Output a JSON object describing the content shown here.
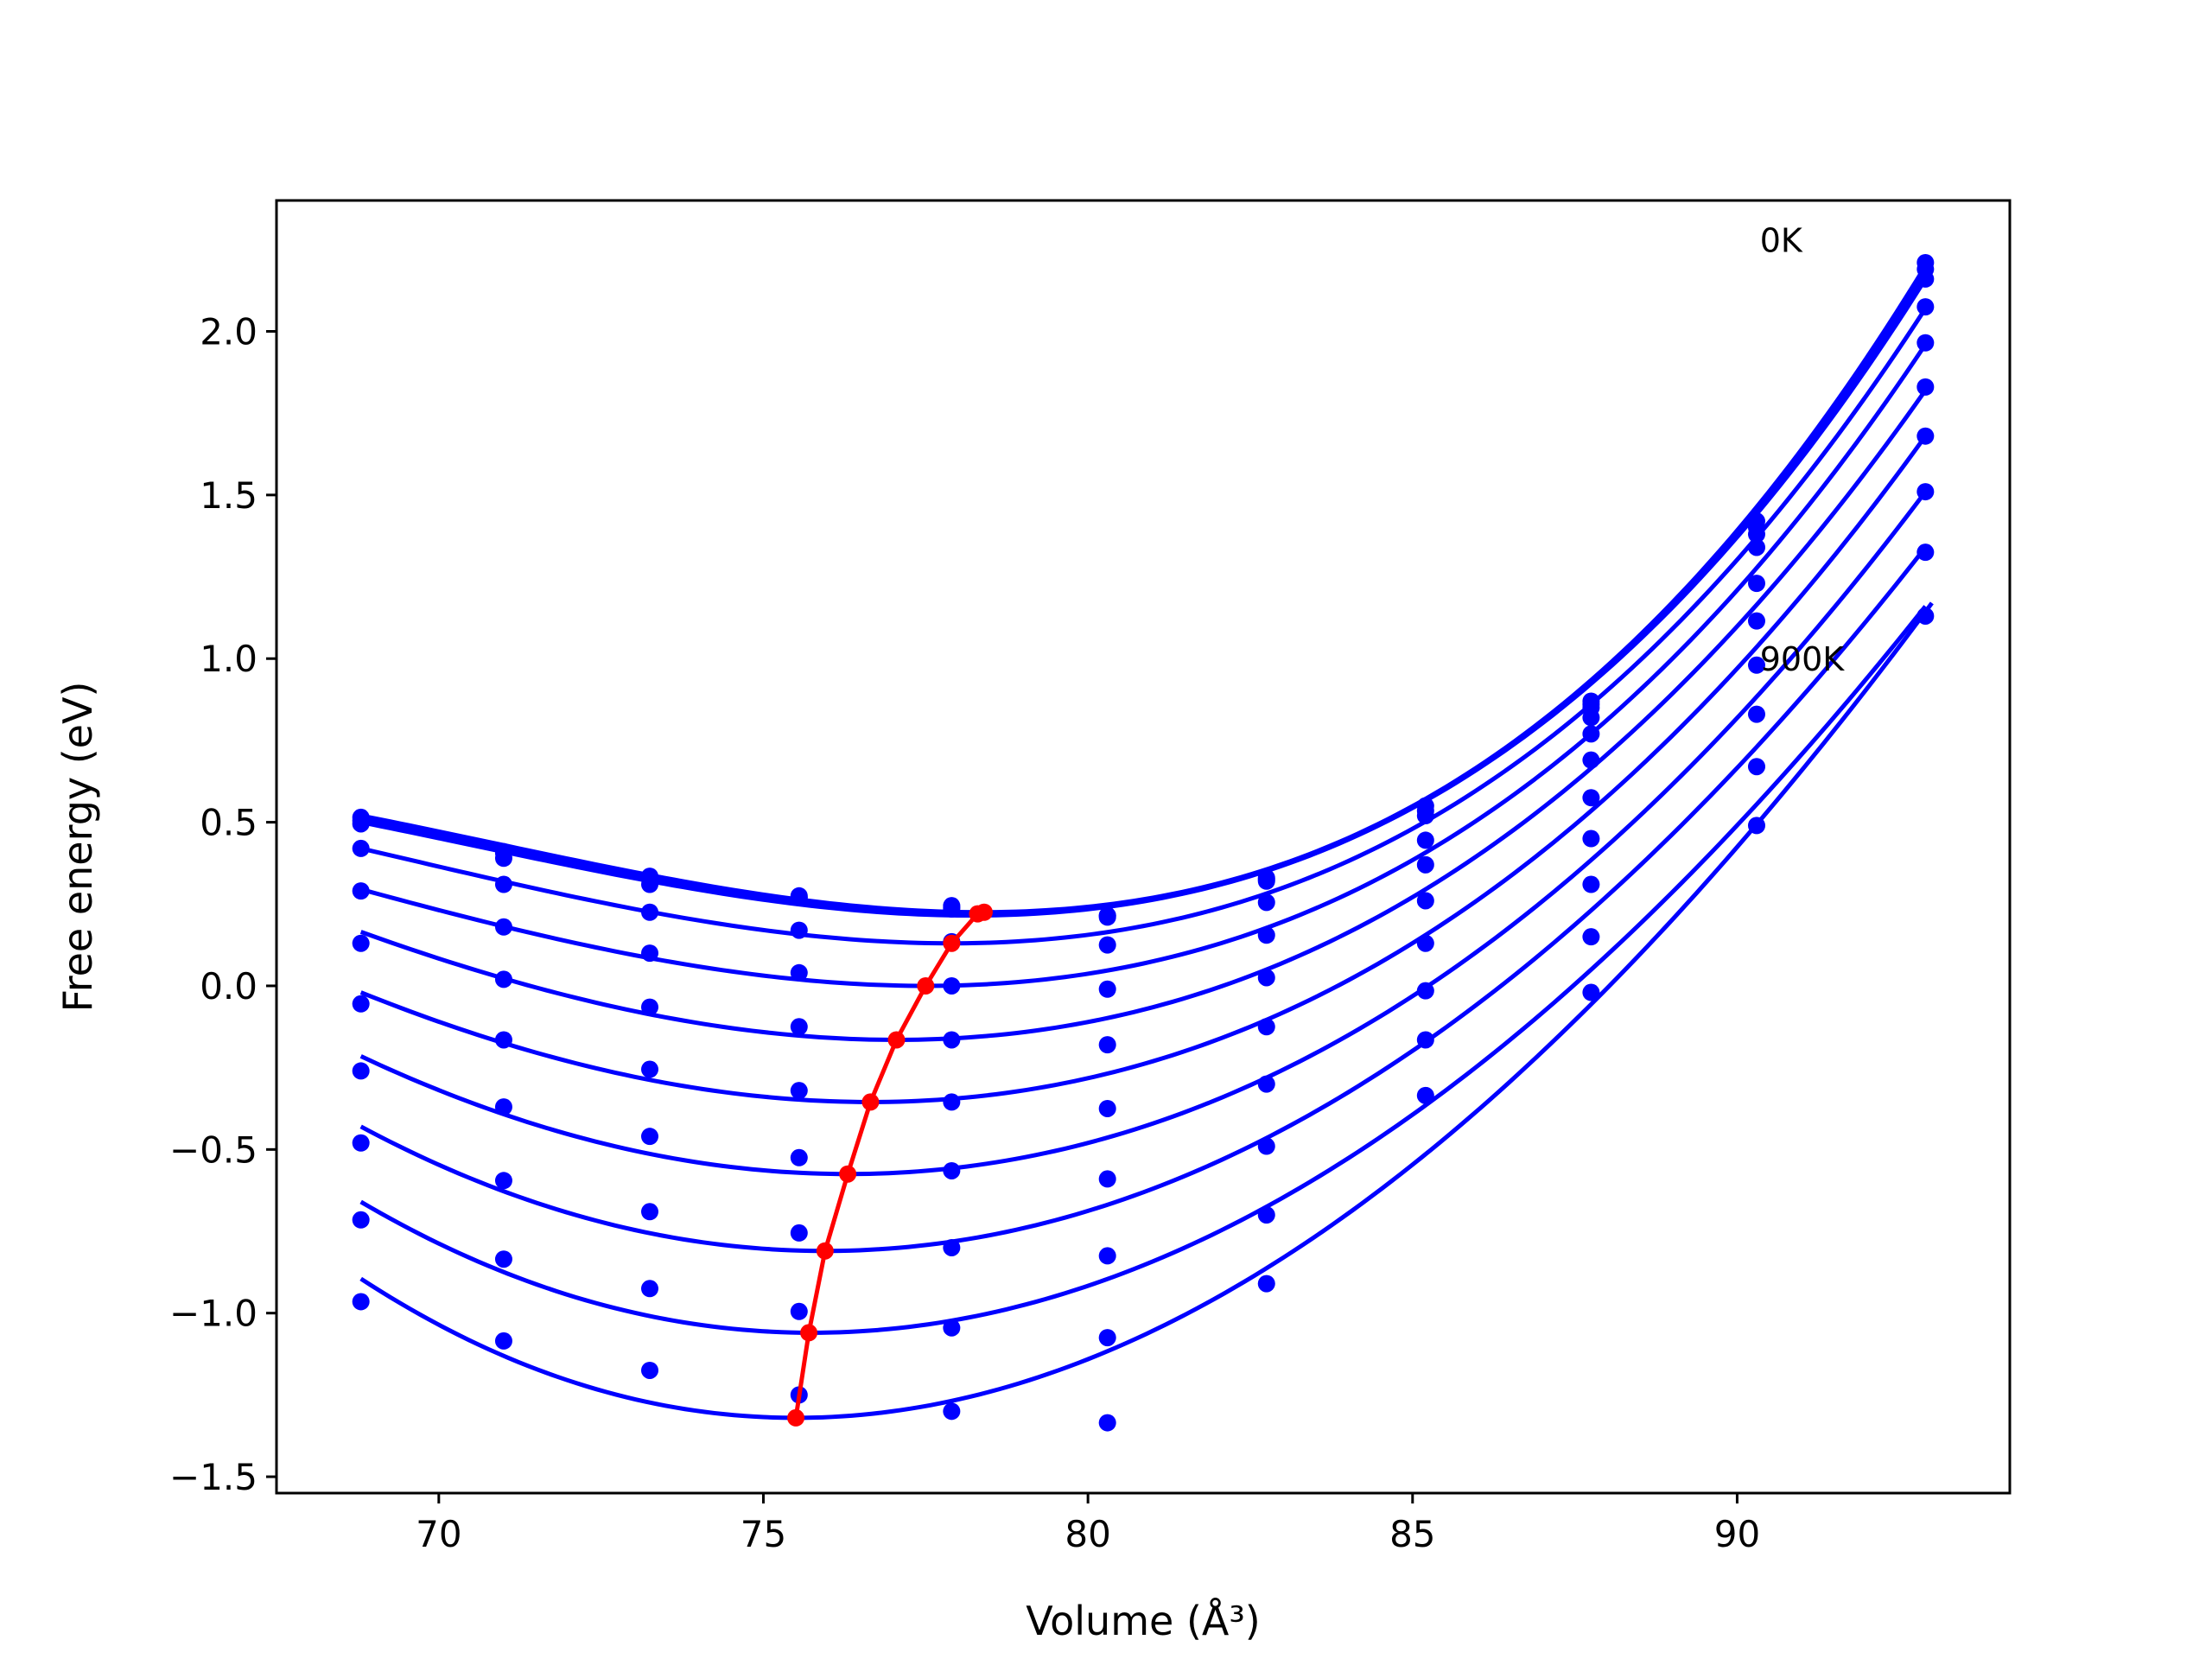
{
  "chart_data": {
    "type": "line",
    "xlabel": "Volume (Å³)",
    "ylabel": "Free energy (eV)",
    "xlim": [
      67.5,
      94.2
    ],
    "ylim": [
      -1.55,
      2.4
    ],
    "grid": false,
    "x_ticks": [
      70,
      75,
      80,
      85,
      90
    ],
    "x_tick_labels": [
      "70",
      "75",
      "80",
      "85",
      "90"
    ],
    "y_ticks": [
      -1.5,
      -1.0,
      -0.5,
      0.0,
      0.5,
      1.0,
      1.5,
      2.0
    ],
    "y_tick_labels": [
      "−1.5",
      "−1.0",
      "−0.5",
      "0.0",
      "0.5",
      "1.0",
      "1.5",
      "2.0"
    ],
    "annotations": [
      {
        "text": "0K",
        "x": 90.35,
        "y": 2.28
      },
      {
        "text": "900K",
        "x": 90.35,
        "y": 1.0
      }
    ],
    "volumes": [
      68.8,
      71.0,
      73.25,
      75.55,
      77.9,
      80.3,
      82.75,
      85.2,
      87.75,
      90.3,
      92.9
    ],
    "series": [
      {
        "values": [
          0.515,
          0.41,
          0.335,
          0.275,
          0.245,
          0.215,
          0.33,
          0.55,
          0.87,
          1.42,
          2.21
        ],
        "fit": {
          "v0": 78.35,
          "e0": 0.225,
          "x_start": 68.8,
          "y_start": 0.52,
          "y_end": 2.2
        }
      },
      {
        "values": [
          0.505,
          0.405,
          0.325,
          0.27,
          0.24,
          0.215,
          0.325,
          0.535,
          0.86,
          1.4,
          2.19
        ],
        "fit": {
          "v0": 78.3,
          "e0": 0.222,
          "x_start": 68.8,
          "y_start": 0.51,
          "y_end": 2.18
        }
      },
      {
        "values": [
          0.495,
          0.39,
          0.31,
          0.27,
          0.235,
          0.21,
          0.32,
          0.52,
          0.85,
          1.38,
          2.16
        ],
        "fit": {
          "v0": 78.2,
          "e0": 0.215,
          "x_start": 68.8,
          "y_start": 0.5,
          "y_end": 2.16
        }
      },
      {
        "values": [
          0.42,
          0.31,
          0.225,
          0.17,
          0.135,
          0.125,
          0.255,
          0.445,
          0.82,
          1.34,
          2.075
        ],
        "fit": {
          "v0": 77.9,
          "e0": 0.13,
          "x_start": 68.8,
          "y_start": 0.42,
          "y_end": 2.07
        }
      },
      {
        "values": [
          0.29,
          0.18,
          0.1,
          0.04,
          0.0,
          -0.01,
          0.155,
          0.37,
          0.77,
          1.23,
          1.965
        ],
        "fit": {
          "v0": 77.5,
          "e0": 0.0,
          "x_start": 68.8,
          "y_start": 0.295,
          "y_end": 1.96
        }
      },
      {
        "values": [
          0.13,
          0.02,
          -0.065,
          -0.125,
          -0.165,
          -0.18,
          0.025,
          0.26,
          0.69,
          1.115,
          1.83
        ],
        "fit": {
          "v0": 77.05,
          "e0": -0.165,
          "x_start": 68.8,
          "y_start": 0.165,
          "y_end": 1.82
        }
      },
      {
        "values": [
          -0.055,
          -0.165,
          -0.255,
          -0.32,
          -0.355,
          -0.375,
          -0.125,
          0.13,
          0.575,
          0.98,
          1.68
        ],
        "fit": {
          "v0": 76.65,
          "e0": -0.355,
          "x_start": 68.8,
          "y_start": -0.02,
          "y_end": 1.68
        }
      },
      {
        "values": [
          -0.26,
          -0.37,
          -0.46,
          -0.525,
          -0.565,
          -0.59,
          -0.3,
          -0.015,
          0.45,
          0.83,
          1.51
        ],
        "fit": {
          "v0": 76.3,
          "e0": -0.575,
          "x_start": 68.8,
          "y_start": -0.215,
          "y_end": 1.51
        }
      },
      {
        "values": [
          -0.48,
          -0.595,
          -0.69,
          -0.755,
          -0.8,
          -0.825,
          -0.49,
          -0.165,
          0.31,
          0.67,
          1.325
        ],
        "fit": {
          "v0": 75.95,
          "e0": -0.81,
          "x_start": 68.8,
          "y_start": -0.43,
          "y_end": 1.34
        }
      },
      {
        "values": [
          -0.715,
          -0.835,
          -0.925,
          -0.995,
          -1.045,
          -1.075,
          -0.7,
          -0.335,
          0.15,
          0.49,
          1.13
        ],
        "fit": {
          "v0": 75.75,
          "e0": -1.06,
          "x_start": 68.8,
          "y_start": -0.66,
          "y_end": 1.16
        }
      },
      {
        "values": [
          -0.965,
          -1.085,
          -1.175,
          -1.25,
          -1.3,
          -1.335,
          -0.91,
          null,
          -0.02,
          null,
          null
        ],
        "fit": {
          "v0": 75.5,
          "e0": -1.32,
          "x_start": 68.8,
          "y_start": -0.895,
          "x_end": 93.0,
          "y_end": 1.17
        }
      }
    ],
    "minima_path": {
      "x": [
        78.4,
        78.3,
        77.9,
        77.5,
        77.05,
        76.65,
        76.3,
        75.95,
        75.7,
        75.5
      ],
      "y": [
        0.225,
        0.22,
        0.13,
        0.0,
        -0.165,
        -0.355,
        -0.575,
        -0.81,
        -1.06,
        -1.32
      ]
    },
    "colors": {
      "series": "#0000ff",
      "minima": "#ff0000",
      "axes": "#000000"
    }
  }
}
